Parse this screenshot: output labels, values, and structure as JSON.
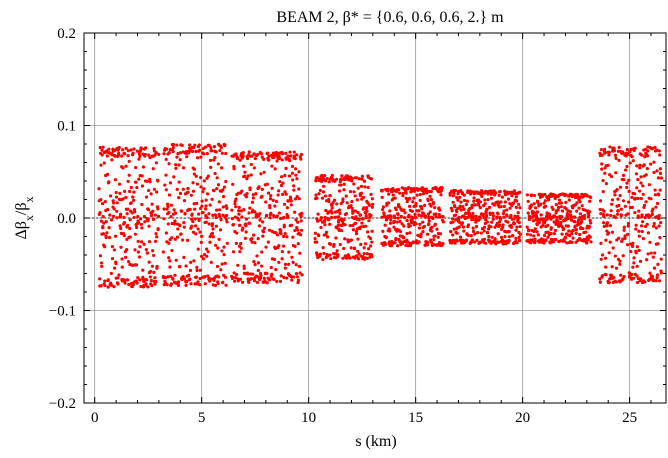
{
  "chart_data": {
    "type": "scatter",
    "title": "BEAM 2, β* = {0.6, 0.6, 0.6, 2.} m",
    "xlabel": "s (km)",
    "ylabel": "Δβx/βx",
    "xlim": [
      -0.5,
      26.7
    ],
    "ylim": [
      -0.2,
      0.2
    ],
    "x_ticks": [
      0,
      5,
      10,
      15,
      20,
      25
    ],
    "x_tick_labels": [
      "0",
      "5",
      "10",
      "15",
      "20",
      "25"
    ],
    "y_ticks": [
      -0.2,
      -0.1,
      0.0,
      0.1,
      0.2
    ],
    "y_tick_labels": [
      "−0.2",
      "−0.1",
      "0.0",
      "0.1",
      "0.2"
    ],
    "grid": true,
    "marker_color": "#ff0000",
    "segments": [
      {
        "x_start": 0.2,
        "x_end": 3.0,
        "y_min": -0.075,
        "y_max": 0.077
      },
      {
        "x_start": 3.2,
        "x_end": 6.2,
        "y_min": -0.073,
        "y_max": 0.08
      },
      {
        "x_start": 6.4,
        "x_end": 9.7,
        "y_min": -0.07,
        "y_max": 0.072
      },
      {
        "x_start": 10.3,
        "x_end": 13.0,
        "y_min": -0.045,
        "y_max": 0.046
      },
      {
        "x_start": 13.4,
        "x_end": 16.3,
        "y_min": -0.03,
        "y_max": 0.033
      },
      {
        "x_start": 16.6,
        "x_end": 19.9,
        "y_min": -0.028,
        "y_max": 0.03
      },
      {
        "x_start": 20.2,
        "x_end": 23.2,
        "y_min": -0.027,
        "y_max": 0.026
      },
      {
        "x_start": 23.6,
        "x_end": 26.5,
        "y_min": -0.07,
        "y_max": 0.077
      }
    ]
  }
}
